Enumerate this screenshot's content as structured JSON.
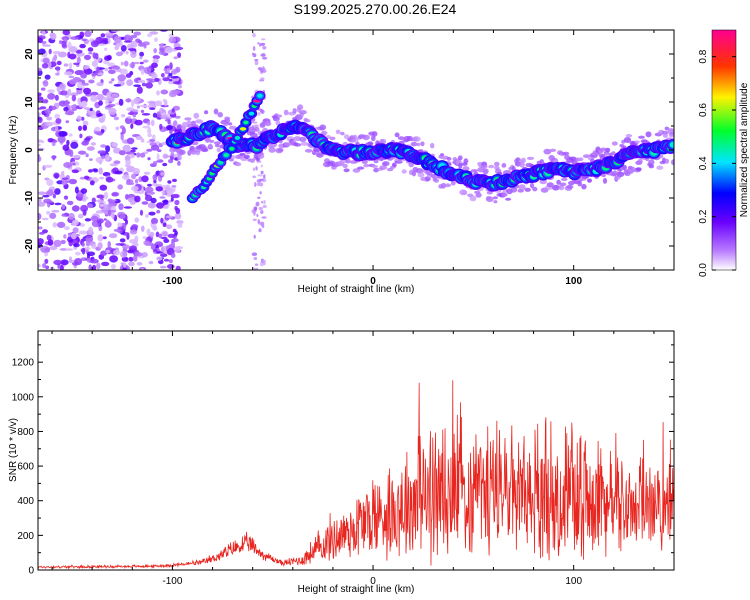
{
  "title": "S199.2025.270.00.26.E24",
  "colors": {
    "snr_line": "#e8251f",
    "background": "#ffffff",
    "axis": "#000000"
  },
  "chart_data": [
    {
      "type": "heatmap",
      "name": "spectrogram",
      "xlabel": "Height of straight line (km)",
      "ylabel": "Frequency (Hz)",
      "xlim": [
        -167,
        150
      ],
      "ylim": [
        -25,
        25
      ],
      "xticks": [
        -100,
        0,
        100
      ],
      "yticks": [
        -20,
        -10,
        0,
        10,
        20
      ],
      "colorbar": {
        "label": "Normalized spectral amplitude",
        "range": [
          0.0,
          0.9
        ],
        "ticks": [
          0.0,
          0.2,
          0.4,
          0.6,
          0.8
        ],
        "colormap": "rainbow (white-violet-blue-cyan-green-yellow-red-magenta)"
      },
      "noise_region_x": [
        -167,
        -100
      ],
      "ridge": [
        {
          "x": -100,
          "y": 1.5
        },
        {
          "x": -90,
          "y": 3
        },
        {
          "x": -80,
          "y": 4.5
        },
        {
          "x": -75,
          "y": 3.5
        },
        {
          "x": -68,
          "y": 1
        },
        {
          "x": -58,
          "y": 1
        },
        {
          "x": -50,
          "y": 3
        },
        {
          "x": -40,
          "y": 5
        },
        {
          "x": -35,
          "y": 5
        },
        {
          "x": -28,
          "y": 2
        },
        {
          "x": -20,
          "y": 0
        },
        {
          "x": -10,
          "y": -0.5
        },
        {
          "x": 0,
          "y": -0.5
        },
        {
          "x": 10,
          "y": 0
        },
        {
          "x": 20,
          "y": -1
        },
        {
          "x": 30,
          "y": -3
        },
        {
          "x": 40,
          "y": -5
        },
        {
          "x": 50,
          "y": -6.5
        },
        {
          "x": 60,
          "y": -7
        },
        {
          "x": 70,
          "y": -6
        },
        {
          "x": 80,
          "y": -5
        },
        {
          "x": 90,
          "y": -4
        },
        {
          "x": 100,
          "y": -4.5
        },
        {
          "x": 110,
          "y": -4
        },
        {
          "x": 120,
          "y": -2.5
        },
        {
          "x": 130,
          "y": -0.5
        },
        {
          "x": 140,
          "y": 0
        },
        {
          "x": 150,
          "y": 1
        }
      ],
      "branch": [
        {
          "x": -90,
          "y": -10
        },
        {
          "x": -80,
          "y": -5
        },
        {
          "x": -70,
          "y": 1
        },
        {
          "x": -62,
          "y": 7
        },
        {
          "x": -56,
          "y": 12
        }
      ]
    },
    {
      "type": "line",
      "name": "snr",
      "xlabel": "Height of straight line (km)",
      "ylabel": "SNR (10 * v/v)",
      "xlim": [
        -167,
        150
      ],
      "ylim": [
        0,
        1380
      ],
      "xticks": [
        -100,
        0,
        100
      ],
      "yticks": [
        0,
        200,
        400,
        600,
        800,
        1000,
        1200
      ],
      "envelope": {
        "x": [
          -167,
          -110,
          -100,
          -85,
          -75,
          -68,
          -62,
          -55,
          -45,
          -35,
          -25,
          -15,
          -5,
          5,
          15,
          25,
          35,
          45,
          55,
          65,
          75,
          85,
          95,
          105,
          115,
          125,
          135,
          150
        ],
        "base": [
          15,
          20,
          25,
          40,
          80,
          120,
          140,
          80,
          35,
          50,
          120,
          170,
          220,
          260,
          300,
          330,
          350,
          360,
          360,
          350,
          340,
          330,
          330,
          320,
          320,
          310,
          300,
          300
        ],
        "amp": [
          12,
          12,
          15,
          25,
          60,
          80,
          90,
          50,
          25,
          60,
          180,
          260,
          360,
          430,
          520,
          620,
          680,
          700,
          640,
          560,
          560,
          620,
          600,
          540,
          480,
          420,
          380,
          380
        ]
      }
    }
  ]
}
